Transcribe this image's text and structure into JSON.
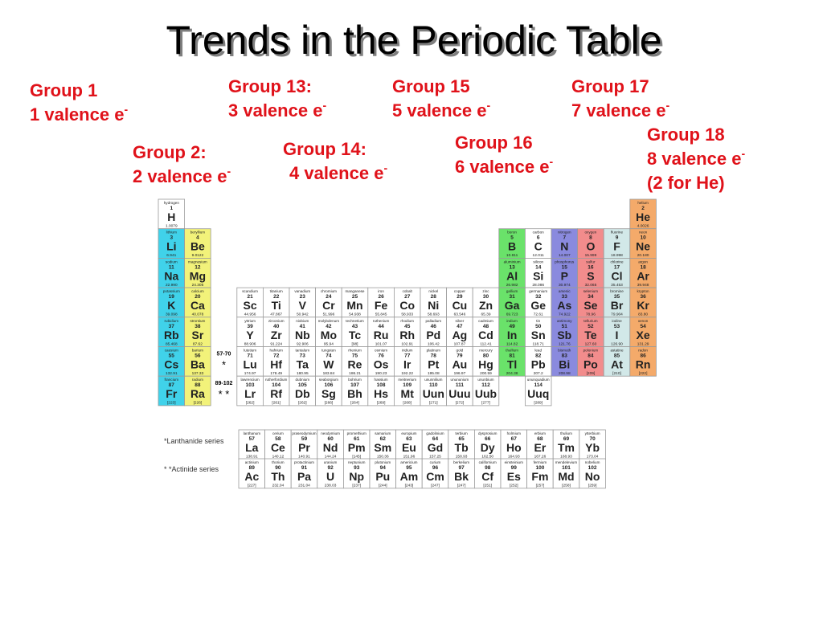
{
  "header": {
    "title": "Trends in the Periodic Table"
  },
  "annotations": [
    {
      "lines": [
        "Group 1",
        "1 valence e"
      ],
      "sup": "-"
    },
    {
      "lines": [
        "Group 13:",
        "3 valence e"
      ],
      "sup": "-"
    },
    {
      "lines": [
        "Group 15",
        "5 valence e"
      ],
      "sup": "-"
    },
    {
      "lines": [
        "Group 17",
        "7 valence e"
      ],
      "sup": "-"
    },
    {
      "lines": [
        "Group 2:",
        "2 valence e"
      ],
      "sup": "-"
    },
    {
      "lines": [
        "Group 14:",
        "4 valence e"
      ],
      "sup": "-"
    },
    {
      "lines": [
        "Group 16",
        "6 valence e"
      ],
      "sup": "-"
    },
    {
      "lines": [
        "Group 18",
        "8 valence e",
        "(2 for He)"
      ],
      "sup": "-"
    }
  ],
  "table": {
    "placeholders": [
      {
        "range": "57-70",
        "mark": "*"
      },
      {
        "range": "89-102",
        "mark": "* *"
      }
    ],
    "series_labels": [
      "*Lanthanide series",
      "* *Actinide series"
    ],
    "elements": [
      [
        "1",
        "H",
        "hydrogen",
        "1.0079"
      ],
      [
        "2",
        "He",
        "helium",
        "4.0026"
      ],
      [
        "3",
        "Li",
        "lithium",
        "6.941"
      ],
      [
        "4",
        "Be",
        "beryllium",
        "9.0122"
      ],
      [
        "5",
        "B",
        "boron",
        "10.811"
      ],
      [
        "6",
        "C",
        "carbon",
        "12.011"
      ],
      [
        "7",
        "N",
        "nitrogen",
        "14.007"
      ],
      [
        "8",
        "O",
        "oxygen",
        "15.999"
      ],
      [
        "9",
        "F",
        "fluorine",
        "18.998"
      ],
      [
        "10",
        "Ne",
        "neon",
        "20.180"
      ],
      [
        "11",
        "Na",
        "sodium",
        "22.990"
      ],
      [
        "12",
        "Mg",
        "magnesium",
        "24.305"
      ],
      [
        "13",
        "Al",
        "aluminium",
        "26.982"
      ],
      [
        "14",
        "Si",
        "silicon",
        "28.086"
      ],
      [
        "15",
        "P",
        "phosphorus",
        "30.974"
      ],
      [
        "16",
        "S",
        "sulfur",
        "32.065"
      ],
      [
        "17",
        "Cl",
        "chlorine",
        "35.453"
      ],
      [
        "18",
        "Ar",
        "argon",
        "39.948"
      ],
      [
        "19",
        "K",
        "potassium",
        "39.098"
      ],
      [
        "20",
        "Ca",
        "calcium",
        "40.078"
      ],
      [
        "21",
        "Sc",
        "scandium",
        "44.956"
      ],
      [
        "22",
        "Ti",
        "titanium",
        "47.867"
      ],
      [
        "23",
        "V",
        "vanadium",
        "50.942"
      ],
      [
        "24",
        "Cr",
        "chromium",
        "51.996"
      ],
      [
        "25",
        "Mn",
        "manganese",
        "54.938"
      ],
      [
        "26",
        "Fe",
        "iron",
        "55.845"
      ],
      [
        "27",
        "Co",
        "cobalt",
        "58.933"
      ],
      [
        "28",
        "Ni",
        "nickel",
        "58.693"
      ],
      [
        "29",
        "Cu",
        "copper",
        "63.546"
      ],
      [
        "30",
        "Zn",
        "zinc",
        "65.39"
      ],
      [
        "31",
        "Ga",
        "gallium",
        "69.723"
      ],
      [
        "32",
        "Ge",
        "germanium",
        "72.61"
      ],
      [
        "33",
        "As",
        "arsenic",
        "74.922"
      ],
      [
        "34",
        "Se",
        "selenium",
        "78.96"
      ],
      [
        "35",
        "Br",
        "bromine",
        "79.904"
      ],
      [
        "36",
        "Kr",
        "krypton",
        "83.80"
      ],
      [
        "37",
        "Rb",
        "rubidium",
        "85.468"
      ],
      [
        "38",
        "Sr",
        "strontium",
        "87.62"
      ],
      [
        "39",
        "Y",
        "yttrium",
        "88.906"
      ],
      [
        "40",
        "Zr",
        "zirconium",
        "91.224"
      ],
      [
        "41",
        "Nb",
        "niobium",
        "92.906"
      ],
      [
        "42",
        "Mo",
        "molybdenum",
        "95.94"
      ],
      [
        "43",
        "Tc",
        "technetium",
        "[98]"
      ],
      [
        "44",
        "Ru",
        "ruthenium",
        "101.07"
      ],
      [
        "45",
        "Rh",
        "rhodium",
        "102.91"
      ],
      [
        "46",
        "Pd",
        "palladium",
        "106.42"
      ],
      [
        "47",
        "Ag",
        "silver",
        "107.87"
      ],
      [
        "48",
        "Cd",
        "cadmium",
        "112.41"
      ],
      [
        "49",
        "In",
        "indium",
        "114.82"
      ],
      [
        "50",
        "Sn",
        "tin",
        "118.71"
      ],
      [
        "51",
        "Sb",
        "antimony",
        "121.76"
      ],
      [
        "52",
        "Te",
        "tellurium",
        "127.60"
      ],
      [
        "53",
        "I",
        "iodine",
        "126.90"
      ],
      [
        "54",
        "Xe",
        "xenon",
        "131.29"
      ],
      [
        "55",
        "Cs",
        "caesium",
        "132.91"
      ],
      [
        "56",
        "Ba",
        "barium",
        "137.33"
      ],
      [
        "57",
        "La",
        "lanthanum",
        "138.91"
      ],
      [
        "58",
        "Ce",
        "cerium",
        "140.12"
      ],
      [
        "59",
        "Pr",
        "praseodymium",
        "140.91"
      ],
      [
        "60",
        "Nd",
        "neodymium",
        "144.24"
      ],
      [
        "61",
        "Pm",
        "promethium",
        "[145]"
      ],
      [
        "62",
        "Sm",
        "samarium",
        "150.36"
      ],
      [
        "63",
        "Eu",
        "europium",
        "151.96"
      ],
      [
        "64",
        "Gd",
        "gadolinium",
        "157.25"
      ],
      [
        "65",
        "Tb",
        "terbium",
        "158.93"
      ],
      [
        "66",
        "Dy",
        "dysprosium",
        "162.50"
      ],
      [
        "67",
        "Ho",
        "holmium",
        "164.93"
      ],
      [
        "68",
        "Er",
        "erbium",
        "167.26"
      ],
      [
        "69",
        "Tm",
        "thulium",
        "168.93"
      ],
      [
        "70",
        "Yb",
        "ytterbium",
        "173.04"
      ],
      [
        "71",
        "Lu",
        "lutetium",
        "174.97"
      ],
      [
        "72",
        "Hf",
        "hafnium",
        "178.49"
      ],
      [
        "73",
        "Ta",
        "tantalum",
        "180.95"
      ],
      [
        "74",
        "W",
        "tungsten",
        "183.84"
      ],
      [
        "75",
        "Re",
        "rhenium",
        "186.21"
      ],
      [
        "76",
        "Os",
        "osmium",
        "190.23"
      ],
      [
        "77",
        "Ir",
        "iridium",
        "192.22"
      ],
      [
        "78",
        "Pt",
        "platinum",
        "195.08"
      ],
      [
        "79",
        "Au",
        "gold",
        "196.97"
      ],
      [
        "80",
        "Hg",
        "mercury",
        "200.59"
      ],
      [
        "81",
        "Tl",
        "thallium",
        "204.38"
      ],
      [
        "82",
        "Pb",
        "lead",
        "207.2"
      ],
      [
        "83",
        "Bi",
        "bismuth",
        "208.98"
      ],
      [
        "84",
        "Po",
        "polonium",
        "[209]"
      ],
      [
        "85",
        "At",
        "astatine",
        "[210]"
      ],
      [
        "86",
        "Rn",
        "radon",
        "[222]"
      ],
      [
        "87",
        "Fr",
        "francium",
        "[223]"
      ],
      [
        "88",
        "Ra",
        "radium",
        "[226]"
      ],
      [
        "89",
        "Ac",
        "actinium",
        "[227]"
      ],
      [
        "90",
        "Th",
        "thorium",
        "232.04"
      ],
      [
        "91",
        "Pa",
        "protactinium",
        "231.04"
      ],
      [
        "92",
        "U",
        "uranium",
        "238.03"
      ],
      [
        "93",
        "Np",
        "neptunium",
        "[237]"
      ],
      [
        "94",
        "Pu",
        "plutonium",
        "[244]"
      ],
      [
        "95",
        "Am",
        "americium",
        "[243]"
      ],
      [
        "96",
        "Cm",
        "curium",
        "[247]"
      ],
      [
        "97",
        "Bk",
        "berkelium",
        "[247]"
      ],
      [
        "98",
        "Cf",
        "californium",
        "[251]"
      ],
      [
        "99",
        "Es",
        "einsteinium",
        "[252]"
      ],
      [
        "100",
        "Fm",
        "fermium",
        "[257]"
      ],
      [
        "101",
        "Md",
        "mendelevium",
        "[258]"
      ],
      [
        "102",
        "No",
        "nobelium",
        "[259]"
      ],
      [
        "103",
        "Lr",
        "lawrencium",
        "[262]"
      ],
      [
        "104",
        "Rf",
        "rutherfordium",
        "[261]"
      ],
      [
        "105",
        "Db",
        "dubnium",
        "[262]"
      ],
      [
        "106",
        "Sg",
        "seaborgium",
        "[266]"
      ],
      [
        "107",
        "Bh",
        "bohrium",
        "[264]"
      ],
      [
        "108",
        "Hs",
        "hassium",
        "[269]"
      ],
      [
        "109",
        "Mt",
        "meitnerium",
        "[268]"
      ],
      [
        "110",
        "Uun",
        "ununnilium",
        "[271]"
      ],
      [
        "111",
        "Uuu",
        "unununium",
        "[272]"
      ],
      [
        "112",
        "Uub",
        "ununbium",
        "[277]"
      ],
      [
        "114",
        "Uuq",
        "ununquadium",
        "[289]"
      ]
    ]
  }
}
